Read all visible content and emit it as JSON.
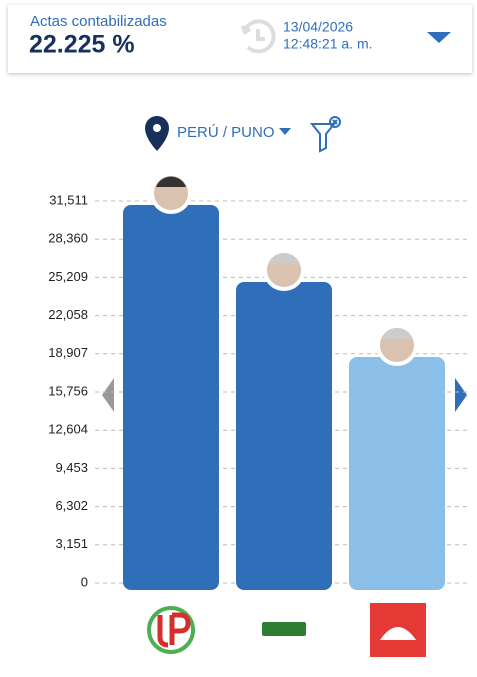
{
  "header": {
    "label": "Actas contabilizadas",
    "percent": "22.225 %",
    "date": "13/04/2026",
    "time": "12:48:21 a. m."
  },
  "location": "PERÚ / PUNO",
  "chart_data": {
    "type": "bar",
    "categories": [
      null,
      null,
      null
    ],
    "values": [
      31181,
      24830,
      18643
    ],
    "colors": [
      "#2f6fba",
      "#2f6fba",
      "#8cbfe7"
    ],
    "ylim": [
      0,
      31511
    ],
    "yticks": [
      0,
      {
        "value": 3151,
        "label": "3,151"
      },
      {
        "value": 6302,
        "label": "6,302"
      },
      {
        "value": 9453,
        "label": "9,453"
      },
      {
        "value": 12604,
        "label": "12,604"
      },
      {
        "value": 15756,
        "label": "15,756"
      },
      {
        "value": 18907,
        "label": "18,907"
      },
      {
        "value": 22058,
        "label": "22,058"
      },
      {
        "value": 25209,
        "label": "25,209"
      },
      {
        "value": 28360,
        "label": "28,360"
      },
      {
        "value": 31511,
        "label": "31,511"
      }
    ],
    "grid": true
  }
}
